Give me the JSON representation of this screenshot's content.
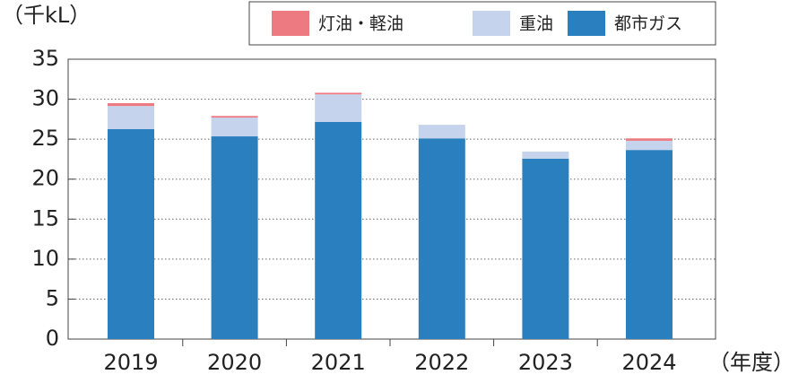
{
  "chart_data": {
    "type": "stacked_bar",
    "unit_label": "（千kL）",
    "x_axis_label": "（年度）",
    "categories": [
      "2019",
      "2020",
      "2021",
      "2022",
      "2023",
      "2024"
    ],
    "series": [
      {
        "name": "灯油・軽油",
        "color": "#ec7a80",
        "values": [
          0.35,
          0.2,
          0.2,
          0,
          0,
          0.3
        ]
      },
      {
        "name": "重油",
        "color": "#c5d3ec",
        "values": [
          2.9,
          2.35,
          3.45,
          1.7,
          0.9,
          1.15
        ]
      },
      {
        "name": "都市ガス",
        "color": "#2a7fbf",
        "values": [
          26.25,
          25.35,
          27.15,
          25.1,
          22.55,
          23.65
        ]
      }
    ],
    "ylim": [
      0,
      35
    ],
    "yticks": [
      0,
      5,
      10,
      15,
      20,
      25,
      30,
      35
    ],
    "grid": true
  }
}
